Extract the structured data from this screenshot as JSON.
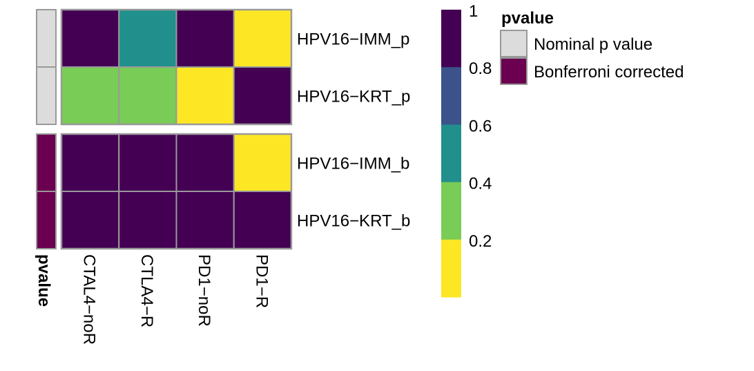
{
  "chart_data": {
    "type": "heatmap",
    "rows": [
      "HPV16−IMM_p",
      "HPV16−KRT_p",
      "HPV16−IMM_b",
      "HPV16−KRT_b"
    ],
    "row_groups": [
      {
        "annotation": "Nominal p value",
        "rows": [
          0,
          1
        ]
      },
      {
        "annotation": "Bonferroni corrected",
        "rows": [
          2,
          3
        ]
      }
    ],
    "columns": [
      "CTAL4−noR",
      "CTLA4−R",
      "PD1−noR",
      "PD1−R"
    ],
    "values": [
      [
        1.0,
        0.5,
        1.0,
        0.1
      ],
      [
        0.3,
        0.3,
        0.1,
        1.0
      ],
      [
        1.0,
        1.0,
        1.0,
        0.1
      ],
      [
        1.0,
        1.0,
        1.0,
        1.0
      ]
    ],
    "annotation_title": "pvalue",
    "color_scale": {
      "breaks": [
        "1",
        "0.8",
        "0.6",
        "0.4",
        "0.2"
      ],
      "bins": [
        {
          "from": 0.8,
          "to": 1.0,
          "color": "#440154"
        },
        {
          "from": 0.6,
          "to": 0.8,
          "color": "#3b528b"
        },
        {
          "from": 0.4,
          "to": 0.6,
          "color": "#21908c"
        },
        {
          "from": 0.2,
          "to": 0.4,
          "color": "#79cc55"
        },
        {
          "from": 0.0,
          "to": 0.2,
          "color": "#fde725"
        }
      ]
    },
    "legend": {
      "title": "pvalue",
      "placement": "right",
      "items": [
        {
          "label": "Nominal p value",
          "color": "#dcdcdc"
        },
        {
          "label": "Bonferroni corrected",
          "color": "#6b0050"
        }
      ]
    },
    "cell_border_color": "#999999"
  }
}
